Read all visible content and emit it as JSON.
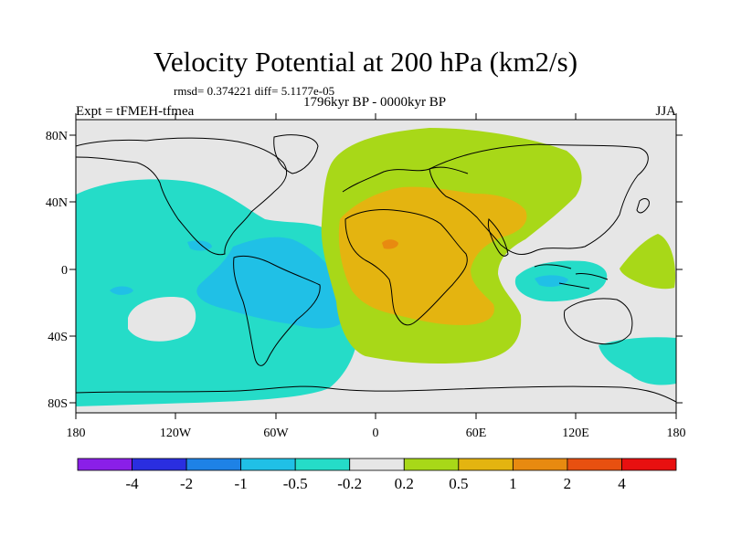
{
  "title": "Velocity Potential at 200 hPa (km2/s)",
  "stats": "rmsd= 0.374221 diff= 5.1177e-05",
  "subtitle": "1796kyr BP - 0000kyr BP",
  "expt": "Expt = tFMEH-tfmea",
  "season": "JJA",
  "lat_ticks": [
    "80N",
    "40N",
    "0",
    "40S",
    "80S"
  ],
  "lon_ticks": [
    "180",
    "120W",
    "60W",
    "0",
    "60E",
    "120E",
    "180"
  ],
  "colorbar": {
    "labels": [
      "-4",
      "-2",
      "-1",
      "-0.5",
      "-0.2",
      "0.2",
      "0.5",
      "1",
      "2",
      "4"
    ],
    "colors": [
      "#8a1fe8",
      "#2a2ee0",
      "#1e82e6",
      "#20c0e6",
      "#25dcc8",
      "#e6e6e6",
      "#a8d818",
      "#e4b410",
      "#e88a10",
      "#e85010",
      "#e81010"
    ]
  },
  "field_colors": {
    "background": "#e6e6e6",
    "neg_weak": "#25dcc8",
    "neg_mid": "#20c0e6",
    "pos_weak": "#a8d818",
    "pos_mid": "#e4b410",
    "pos_strong": "#e88a10"
  }
}
